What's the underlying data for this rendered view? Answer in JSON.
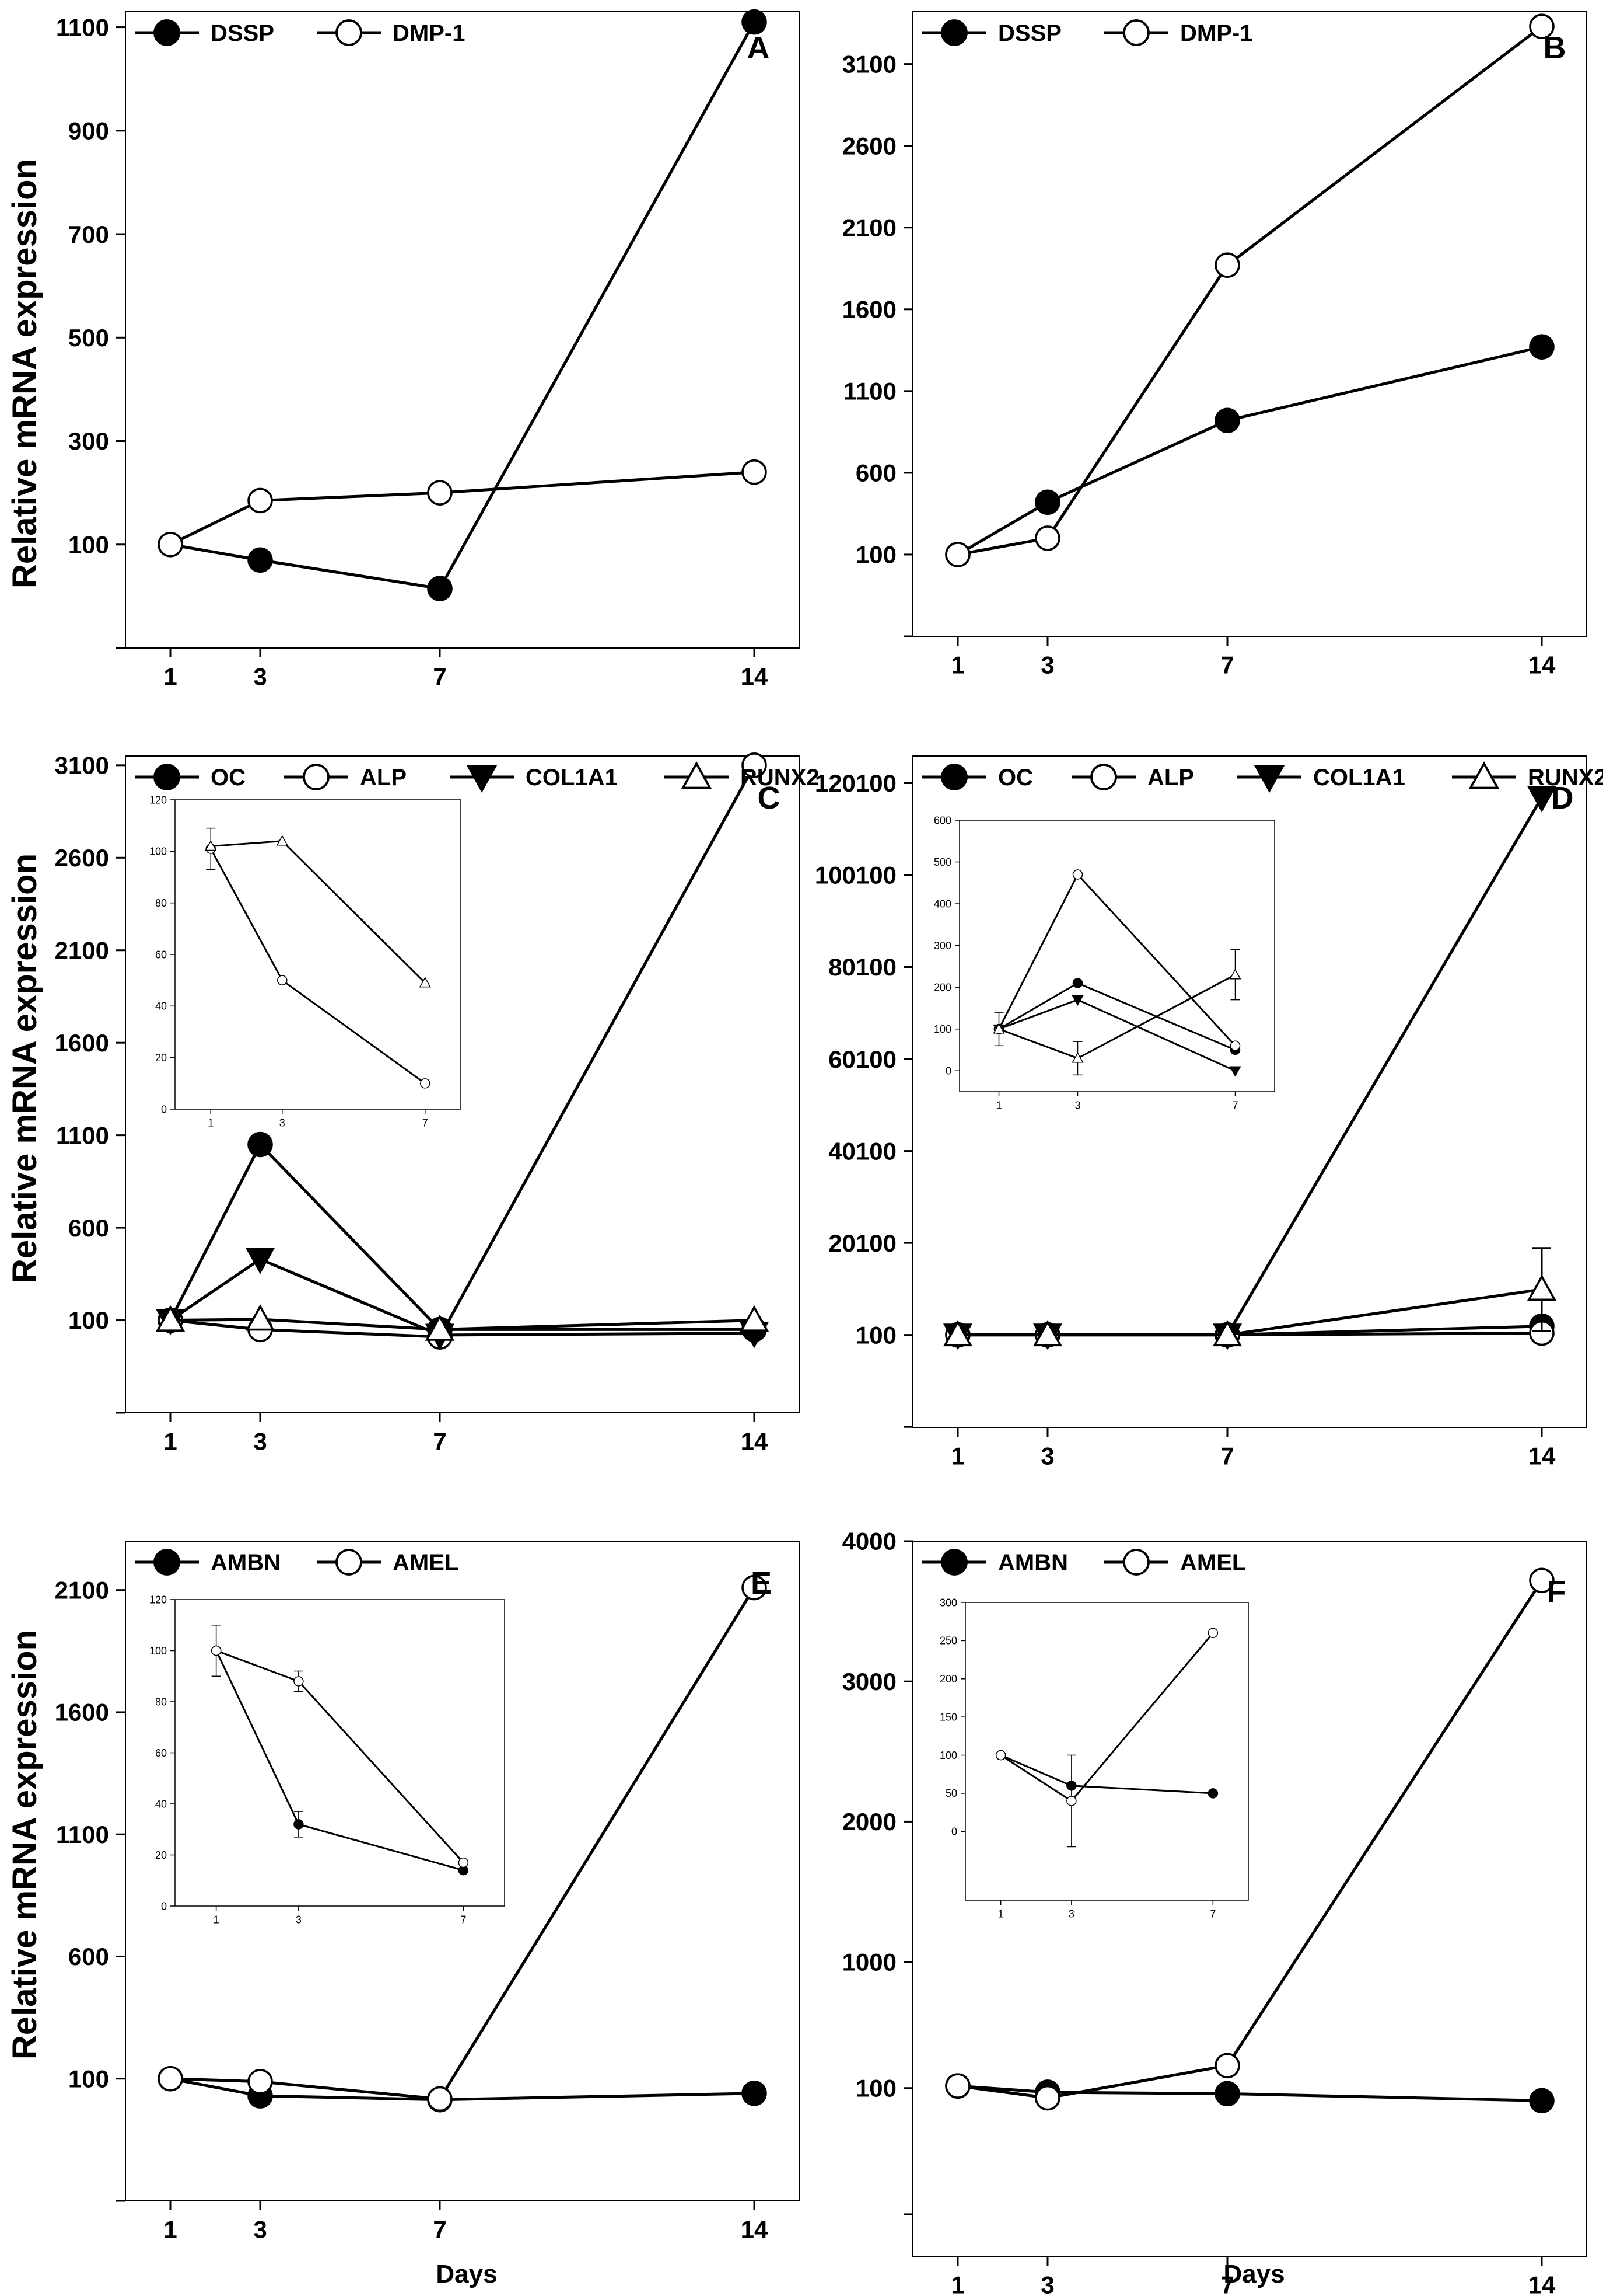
{
  "figure": {
    "ylabel": "Relative mRNA expression",
    "xlabel": "Days"
  },
  "chart_data": [
    {
      "panel": "A",
      "type": "line",
      "x": [
        1,
        3,
        7,
        14
      ],
      "xticks": [
        1,
        3,
        7,
        14
      ],
      "xlim": [
        0,
        15
      ],
      "ylim": [
        -100,
        1130
      ],
      "yticks": [
        100,
        300,
        500,
        700,
        900,
        1100
      ],
      "series": [
        {
          "name": "DSSP",
          "marker": "filled-circle",
          "values": [
            100,
            70,
            15,
            1110
          ]
        },
        {
          "name": "DMP-1",
          "marker": "open-circle",
          "values": [
            100,
            185,
            200,
            240
          ]
        }
      ]
    },
    {
      "panel": "B",
      "type": "line",
      "x": [
        1,
        3,
        7,
        14
      ],
      "xticks": [
        1,
        3,
        7,
        14
      ],
      "xlim": [
        0,
        15
      ],
      "ylim": [
        -400,
        3420
      ],
      "yticks": [
        100,
        600,
        1100,
        1600,
        2100,
        2600,
        3100
      ],
      "series": [
        {
          "name": "DSSP",
          "marker": "filled-circle",
          "values": [
            100,
            420,
            920,
            1370
          ]
        },
        {
          "name": "DMP-1",
          "marker": "open-circle",
          "values": [
            100,
            200,
            1870,
            3330
          ]
        }
      ]
    },
    {
      "panel": "C",
      "type": "line",
      "x": [
        1,
        3,
        7,
        14
      ],
      "xticks": [
        1,
        3,
        7,
        14
      ],
      "xlim": [
        0,
        15
      ],
      "ylim": [
        -400,
        3150
      ],
      "yticks": [
        100,
        600,
        1100,
        1600,
        2100,
        2600,
        3100
      ],
      "series": [
        {
          "name": "OC",
          "marker": "filled-circle",
          "values": [
            100,
            1050,
            50,
            50
          ]
        },
        {
          "name": "ALP",
          "marker": "open-circle",
          "values": [
            100,
            50,
            10,
            3100
          ]
        },
        {
          "name": "COL1A1",
          "marker": "filled-triangle-down",
          "values": [
            100,
            430,
            20,
            30
          ]
        },
        {
          "name": "RUNX2",
          "marker": "open-triangle-up",
          "values": [
            100,
            105,
            50,
            100
          ]
        }
      ],
      "inset": {
        "x": [
          1,
          3,
          7
        ],
        "xticks": [
          1,
          3,
          7
        ],
        "xlim": [
          0,
          8
        ],
        "ylim": [
          0,
          120
        ],
        "yticks": [
          0,
          20,
          40,
          60,
          80,
          100,
          120
        ],
        "series": [
          {
            "name": "ALP",
            "marker": "open-circle",
            "values": [
              101,
              50,
              10
            ],
            "err": [
              8,
              0,
              0
            ]
          },
          {
            "name": "RUNX2",
            "marker": "open-triangle-up",
            "values": [
              102,
              104,
              49
            ],
            "err": [
              0,
              0,
              0
            ]
          }
        ]
      }
    },
    {
      "panel": "D",
      "type": "line",
      "x": [
        1,
        3,
        7,
        14
      ],
      "xticks": [
        1,
        3,
        7,
        14
      ],
      "xlim": [
        0,
        15
      ],
      "ylim": [
        -20000,
        126000
      ],
      "yticks": [
        100,
        20100,
        40100,
        60100,
        80100,
        100100,
        120100
      ],
      "series": [
        {
          "name": "OC",
          "marker": "filled-circle",
          "values": [
            100,
            100,
            100,
            2000
          ]
        },
        {
          "name": "ALP",
          "marker": "open-circle",
          "values": [
            100,
            100,
            100,
            500
          ]
        },
        {
          "name": "COL1A1",
          "marker": "filled-triangle-down",
          "values": [
            100,
            100,
            100,
            117000
          ]
        },
        {
          "name": "RUNX2",
          "marker": "open-triangle-up",
          "values": [
            100,
            100,
            100,
            10000
          ],
          "err": [
            0,
            0,
            0,
            9000
          ]
        }
      ],
      "inset": {
        "x": [
          1,
          3,
          7
        ],
        "xticks": [
          1,
          3,
          7
        ],
        "xlim": [
          0,
          8
        ],
        "ylim": [
          -50,
          600
        ],
        "yticks": [
          0,
          100,
          200,
          300,
          400,
          500,
          600
        ],
        "series": [
          {
            "name": "OC",
            "marker": "filled-circle",
            "values": [
              100,
              210,
              50
            ]
          },
          {
            "name": "ALP",
            "marker": "open-circle",
            "values": [
              100,
              470,
              60
            ]
          },
          {
            "name": "COL1A1",
            "marker": "filled-triangle-down",
            "values": [
              100,
              170,
              0
            ]
          },
          {
            "name": "RUNX2",
            "marker": "open-triangle-up",
            "values": [
              100,
              30,
              230
            ],
            "err": [
              40,
              40,
              60
            ]
          }
        ]
      }
    },
    {
      "panel": "E",
      "type": "line",
      "x": [
        1,
        3,
        7,
        14
      ],
      "xticks": [
        1,
        3,
        7,
        14
      ],
      "xlim": [
        0,
        15
      ],
      "ylim": [
        -400,
        2300
      ],
      "yticks": [
        100,
        600,
        1100,
        1600,
        2100
      ],
      "series": [
        {
          "name": "AMBN",
          "marker": "filled-circle",
          "values": [
            100,
            30,
            14,
            40
          ]
        },
        {
          "name": "AMEL",
          "marker": "open-circle",
          "values": [
            100,
            88,
            17,
            2110
          ]
        }
      ],
      "inset": {
        "x": [
          1,
          3,
          7
        ],
        "xticks": [
          1,
          3,
          7
        ],
        "xlim": [
          0,
          8
        ],
        "ylim": [
          0,
          120
        ],
        "yticks": [
          0,
          20,
          40,
          60,
          80,
          100,
          120
        ],
        "series": [
          {
            "name": "AMBN",
            "marker": "filled-circle",
            "values": [
              100,
              32,
              14
            ],
            "err": [
              0,
              5,
              0
            ]
          },
          {
            "name": "AMEL",
            "marker": "open-circle",
            "values": [
              100,
              88,
              17
            ],
            "err": [
              10,
              4,
              0
            ]
          }
        ]
      }
    },
    {
      "panel": "F",
      "type": "line",
      "x": [
        1,
        3,
        7,
        14
      ],
      "xticks": [
        1,
        3,
        7,
        14
      ],
      "xlim": [
        0,
        15
      ],
      "ylim": [
        -1100,
        4000
      ],
      "yticks": [
        100,
        1000,
        2000,
        3000,
        4000
      ],
      "series": [
        {
          "name": "AMBN",
          "marker": "filled-circle",
          "values": [
            115,
            70,
            60,
            10
          ]
        },
        {
          "name": "AMEL",
          "marker": "open-circle",
          "values": [
            115,
            30,
            260,
            3720
          ]
        }
      ],
      "inset": {
        "x": [
          1,
          3,
          7
        ],
        "xticks": [
          1,
          3,
          7
        ],
        "xlim": [
          0,
          8
        ],
        "ylim": [
          -90,
          300
        ],
        "yticks": [
          0,
          50,
          100,
          150,
          200,
          250,
          300
        ],
        "series": [
          {
            "name": "AMBN",
            "marker": "filled-circle",
            "values": [
              100,
              60,
              50
            ]
          },
          {
            "name": "AMEL",
            "marker": "open-circle",
            "values": [
              100,
              40,
              260
            ],
            "err": [
              0,
              60,
              0
            ]
          }
        ]
      }
    }
  ]
}
